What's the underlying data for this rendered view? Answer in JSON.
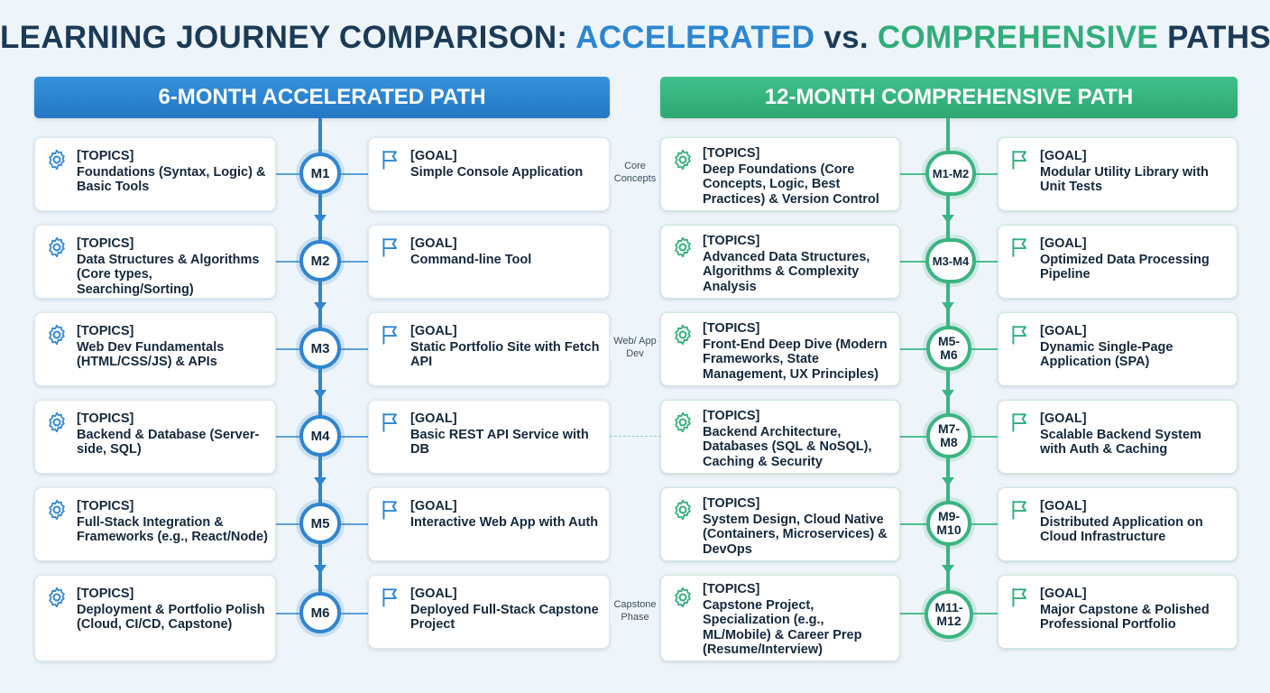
{
  "title": {
    "part1": "LEARNING JOURNEY COMPARISON:",
    "accelerated": "ACCELERATED",
    "vs": "vs.",
    "comprehensive": "COMPREHENSIVE",
    "paths": "PATHS"
  },
  "colors": {
    "blue": "#2c86d1",
    "green": "#31ad7a",
    "navy": "#1b3a57"
  },
  "left_path": {
    "header": "6-MONTH ACCELERATED PATH",
    "rows": [
      {
        "milestone": "M1",
        "topics_tag": "[TOPICS]",
        "topics": "Foundations (Syntax, Logic) & Basic Tools",
        "goal_tag": "[GOAL]",
        "goal": "Simple Console Application"
      },
      {
        "milestone": "M2",
        "topics_tag": "[TOPICS]",
        "topics": "Data Structures & Algorithms (Core types, Searching/Sorting)",
        "goal_tag": "[GOAL]",
        "goal": "Command-line Tool"
      },
      {
        "milestone": "M3",
        "topics_tag": "[TOPICS]",
        "topics": "Web Dev Fundamentals (HTML/CSS/JS) & APIs",
        "goal_tag": "[GOAL]",
        "goal": "Static Portfolio Site with Fetch API"
      },
      {
        "milestone": "M4",
        "topics_tag": "[TOPICS]",
        "topics": "Backend & Database (Server-side, SQL)",
        "goal_tag": "[GOAL]",
        "goal": "Basic REST API Service with DB"
      },
      {
        "milestone": "M5",
        "topics_tag": "[TOPICS]",
        "topics": "Full-Stack Integration & Frameworks (e.g., React/Node)",
        "goal_tag": "[GOAL]",
        "goal": "Interactive Web App with Auth"
      },
      {
        "milestone": "M6",
        "topics_tag": "[TOPICS]",
        "topics": "Deployment & Portfolio Polish (Cloud, CI/CD, Capstone)",
        "goal_tag": "[GOAL]",
        "goal": "Deployed Full-Stack Capstone Project"
      }
    ]
  },
  "right_path": {
    "header": "12-MONTH COMPREHENSIVE PATH",
    "rows": [
      {
        "milestone": "M1-M2",
        "topics_tag": "[TOPICS]",
        "topics": "Deep Foundations (Core Concepts, Logic, Best Practices) & Version Control",
        "goal_tag": "[GOAL]",
        "goal": "Modular Utility Library with Unit Tests"
      },
      {
        "milestone": "M3-M4",
        "topics_tag": "[TOPICS]",
        "topics": "Advanced Data Structures, Algorithms & Complexity Analysis",
        "goal_tag": "[GOAL]",
        "goal": "Optimized Data Processing Pipeline"
      },
      {
        "milestone": "M5-M6",
        "topics_tag": "[TOPICS]",
        "topics": "Front-End Deep Dive (Modern Frameworks, State Management, UX Principles)",
        "goal_tag": "[GOAL]",
        "goal": "Dynamic Single-Page Application (SPA)"
      },
      {
        "milestone": "M7-M8",
        "topics_tag": "[TOPICS]",
        "topics": "Backend Architecture, Databases (SQL & NoSQL), Caching & Security",
        "goal_tag": "[GOAL]",
        "goal": "Scalable Backend System with Auth & Caching"
      },
      {
        "milestone": "M9-M10",
        "topics_tag": "[TOPICS]",
        "topics": "System Design, Cloud Native (Containers, Microservices) & DevOps",
        "goal_tag": "[GOAL]",
        "goal": "Distributed Application on Cloud Infrastructure"
      },
      {
        "milestone": "M11-M12",
        "topics_tag": "[TOPICS]",
        "topics": "Capstone Project, Specialization (e.g., ML/Mobile) & Career Prep (Resume/Interview)",
        "goal_tag": "[GOAL]",
        "goal": "Major Capstone & Polished Professional Portfolio"
      }
    ]
  },
  "bridges": {
    "core": "Core Concepts",
    "web": "Web/ App Dev",
    "capstone": "Capstone Phase"
  },
  "icons": {
    "topics": "gear-icon",
    "goal": "flag-icon"
  }
}
